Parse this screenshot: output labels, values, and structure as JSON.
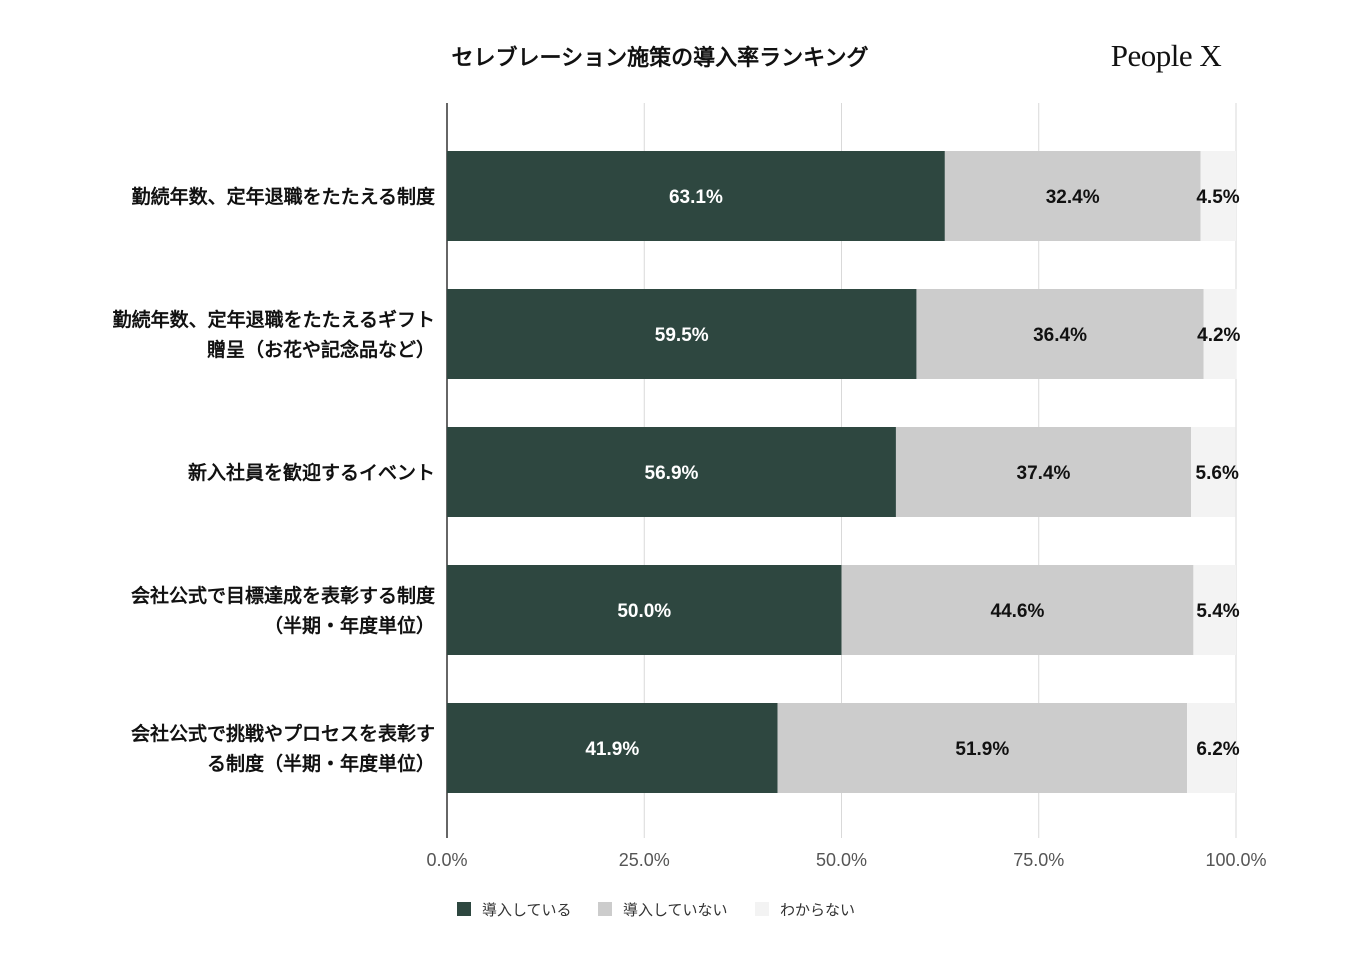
{
  "header": {
    "title": "セレブレーション施策の導入率ランキング",
    "logo_text": "People X"
  },
  "legend": [
    {
      "label": "導入している",
      "color": "#2e4740"
    },
    {
      "label": "導入していない",
      "color": "#cccccc"
    },
    {
      "label": "わからない",
      "color": "#f3f3f3"
    }
  ],
  "chart_data": {
    "type": "bar",
    "orientation": "horizontal",
    "stacked": true,
    "title": "セレブレーション施策の導入率ランキング",
    "categories": [
      [
        "勤続年数、定年退職をたたえる制度"
      ],
      [
        "勤続年数、定年退職をたたえるギフト",
        "贈呈（お花や記念品など）"
      ],
      [
        "新入社員を歓迎するイベント"
      ],
      [
        "会社公式で目標達成を表彰する制度",
        "（半期・年度単位）"
      ],
      [
        "会社公式で挑戦やプロセスを表彰す",
        "る制度（半期・年度単位）"
      ]
    ],
    "series": [
      {
        "name": "導入している",
        "color": "#2e4740",
        "label_color": "#ffffff",
        "values": [
          63.1,
          59.5,
          56.9,
          50.0,
          41.9
        ],
        "labels": [
          "63.1%",
          "59.5%",
          "56.9%",
          "50.0%",
          "41.9%"
        ]
      },
      {
        "name": "導入していない",
        "color": "#cccccc",
        "label_color": "#111111",
        "values": [
          32.4,
          36.4,
          37.4,
          44.6,
          51.9
        ],
        "labels": [
          "32.4%",
          "36.4%",
          "37.4%",
          "44.6%",
          "51.9%"
        ]
      },
      {
        "name": "わからない",
        "color": "#f3f3f3",
        "label_color": "#111111",
        "values": [
          4.5,
          4.2,
          5.6,
          5.4,
          6.2
        ],
        "labels": [
          "4.5%",
          "4.2%",
          "5.6%",
          "5.4%",
          "6.2%"
        ]
      }
    ],
    "xlim": [
      0,
      100
    ],
    "xticks": [
      0,
      25,
      50,
      75,
      100
    ],
    "xtick_labels": [
      "0.0%",
      "25.0%",
      "50.0%",
      "75.0%",
      "100.0%"
    ],
    "grid": true,
    "legend_position": "bottom-center"
  }
}
